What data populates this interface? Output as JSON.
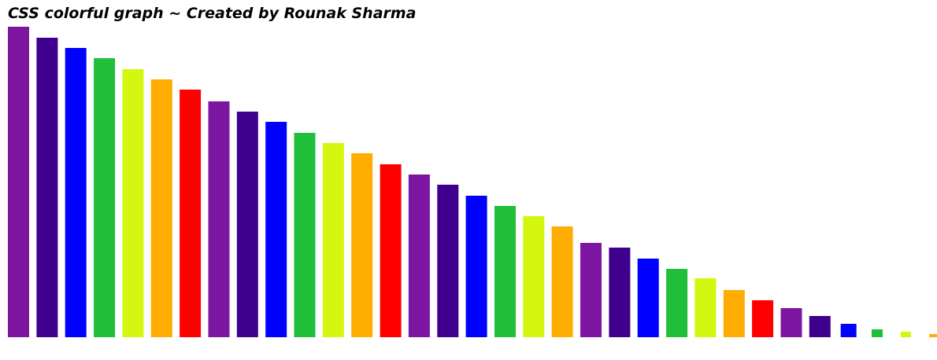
{
  "title": "CSS colorful graph ~ Created by Rounak Sharma",
  "chart_data": {
    "type": "bar",
    "title": "CSS colorful graph ~ Created by Rounak Sharma",
    "xlabel": "",
    "ylabel": "",
    "grid": false,
    "legend": "none",
    "color_cycle": [
      "#7c15a0",
      "#3f008d",
      "#0000ff",
      "#1fbf3a",
      "#d4f70f",
      "#ffad00",
      "#ff0000"
    ],
    "values": [
      395,
      381,
      368,
      355,
      341,
      328,
      315,
      300,
      287,
      274,
      260,
      247,
      234,
      220,
      207,
      194,
      180,
      167,
      154,
      141,
      120,
      114,
      100,
      87,
      75,
      60,
      47,
      37,
      27,
      17,
      10,
      7,
      4,
      1.5
    ],
    "colors": [
      "#7c15a0",
      "#3f008d",
      "#0000ff",
      "#1fbf3a",
      "#d4f70f",
      "#ffad00",
      "#ff0000",
      "#7c15a0",
      "#3f008d",
      "#0000ff",
      "#1fbf3a",
      "#d4f70f",
      "#ffad00",
      "#ff0000",
      "#7c15a0",
      "#3f008d",
      "#0000ff",
      "#1fbf3a",
      "#d4f70f",
      "#ffad00",
      "#7c15a0",
      "#3f008d",
      "#0000ff",
      "#1fbf3a",
      "#d4f70f",
      "#ffad00",
      "#ff0000",
      "#7c15a0",
      "#3f008d",
      "#0000ff",
      "#1fbf3a",
      "#d4f70f",
      "#ffad00",
      "#ff0000"
    ]
  }
}
